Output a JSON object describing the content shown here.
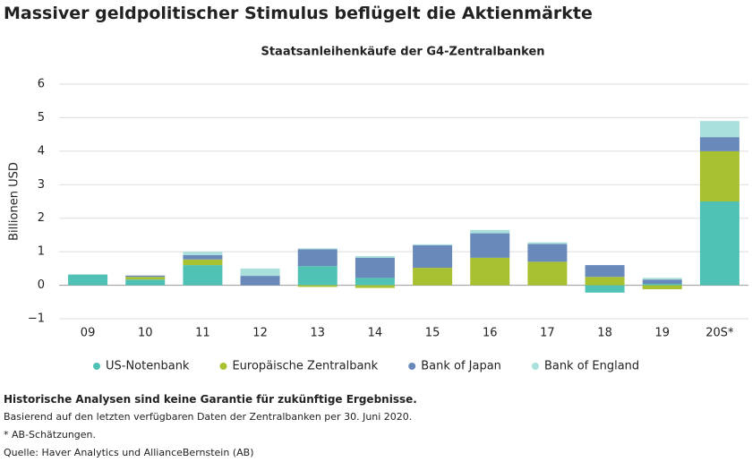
{
  "chart_data": {
    "type": "stacked-bar",
    "title": "Massiver geldpolitischer Stimulus beflügelt die Aktienmärkte",
    "subtitle": "Staatsanleihenkäufe der G4-Zentralbanken",
    "y_label": "Billionen USD",
    "categories": [
      "09",
      "10",
      "11",
      "12",
      "13",
      "14",
      "15",
      "16",
      "17",
      "18",
      "19",
      "20S*"
    ],
    "series": [
      {
        "name": "US-Notenbank",
        "color": "#4fc1b5",
        "values": [
          0.32,
          0.17,
          0.6,
          0,
          0.57,
          0.22,
          0,
          0,
          0,
          -0.22,
          0.04,
          2.5
        ]
      },
      {
        "name": "Europäische Zentralbank",
        "color": "#a8c130",
        "values": [
          0,
          0.08,
          0.17,
          0,
          -0.05,
          -0.08,
          0.52,
          0.82,
          0.7,
          0.25,
          -0.12,
          1.5
        ]
      },
      {
        "name": "Bank of Japan",
        "color": "#6a89bb",
        "values": [
          0,
          0.04,
          0.13,
          0.28,
          0.5,
          0.6,
          0.67,
          0.73,
          0.53,
          0.35,
          0.13,
          0.42
        ]
      },
      {
        "name": "Bank of England",
        "color": "#a9e0dc",
        "values": [
          0,
          0,
          0.1,
          0.22,
          0.03,
          0.05,
          0.03,
          0.1,
          0.05,
          0,
          0.05,
          0.48
        ]
      }
    ],
    "ylim": [
      -1,
      6
    ],
    "yticks": [
      {
        "value": -1,
        "label": "−1"
      },
      0,
      1,
      2,
      3,
      4,
      5,
      6
    ],
    "grid": true,
    "notes": [
      "Historische Analysen sind keine Garantie für zukünftige Ergebnisse.",
      "Basierend auf den letzten verfügbaren Daten der Zentralbanken per 30. Juni 2020.",
      "* AB-Schätzungen.",
      "Quelle: Haver Analytics und AllianceBernstein (AB)"
    ]
  }
}
